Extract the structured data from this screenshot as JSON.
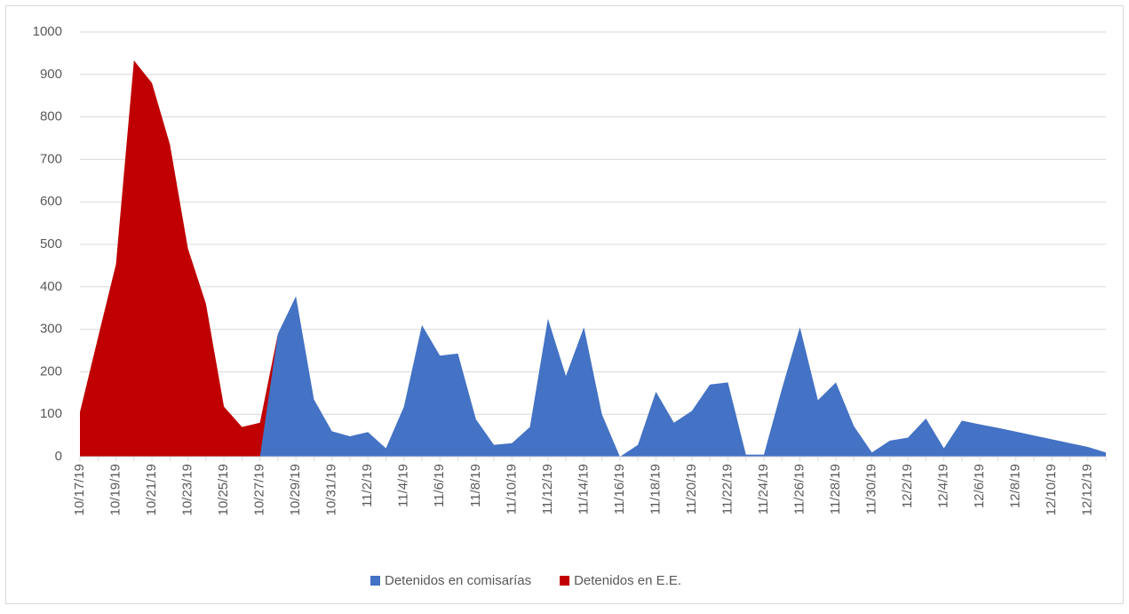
{
  "chart_data": {
    "type": "area",
    "categories": [
      "10/17/19",
      null,
      "10/19/19",
      null,
      "10/21/19",
      null,
      "10/23/19",
      null,
      "10/25/19",
      null,
      "10/27/19",
      null,
      "10/29/19",
      null,
      "10/31/19",
      null,
      "11/2/19",
      null,
      "11/4/19",
      null,
      "11/6/19",
      null,
      "11/8/19",
      null,
      "11/10/19",
      null,
      "11/12/19",
      null,
      "11/14/19",
      null,
      "11/16/19",
      null,
      "11/18/19",
      null,
      "11/20/19",
      null,
      "11/22/19",
      null,
      "11/24/19",
      null,
      "11/26/19",
      null,
      "11/28/19",
      null,
      "11/30/19",
      null,
      "12/2/19",
      null,
      "12/4/19",
      null,
      "12/6/19",
      null,
      "12/8/19",
      null,
      "12/10/19",
      null,
      "12/12/19",
      null
    ],
    "series": [
      {
        "name": "Detenidos en comisarías",
        "color": "#4472c4",
        "values": [
          null,
          null,
          null,
          null,
          null,
          null,
          null,
          null,
          null,
          null,
          0,
          290,
          378,
          135,
          60,
          48,
          58,
          20,
          118,
          310,
          238,
          243,
          88,
          28,
          32,
          70,
          325,
          190,
          305,
          100,
          0,
          28,
          153,
          80,
          108,
          170,
          175,
          5,
          5,
          160,
          305,
          133,
          175,
          72,
          10,
          38,
          45,
          90,
          20,
          85,
          76,
          68,
          59,
          50,
          41,
          32,
          23,
          10
        ]
      },
      {
        "name": "Detenidos en E.E.",
        "color": "#c00000",
        "values": [
          105,
          280,
          453,
          933,
          880,
          735,
          490,
          360,
          118,
          70,
          80,
          290,
          null,
          null,
          null,
          null,
          null,
          null,
          null,
          null,
          null,
          null,
          null,
          null,
          null,
          null,
          null,
          null,
          null,
          null,
          null,
          null,
          null,
          null,
          null,
          null,
          null,
          null,
          null,
          null,
          null,
          null,
          null,
          null,
          null,
          null,
          null,
          null,
          null,
          null,
          null,
          null,
          null,
          null,
          null,
          null,
          null,
          null
        ]
      }
    ],
    "ylim": [
      0,
      1000
    ],
    "yticks": [
      0,
      100,
      200,
      300,
      400,
      500,
      600,
      700,
      800,
      900,
      1000
    ],
    "grid": true,
    "legend": "bottom"
  }
}
